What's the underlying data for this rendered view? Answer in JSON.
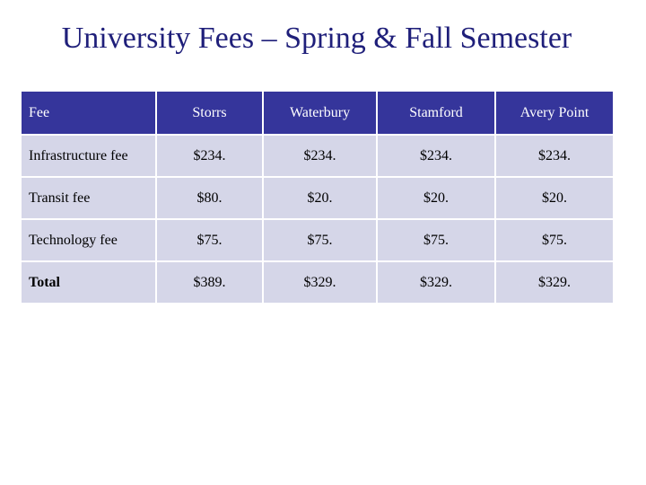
{
  "title": "University Fees – Spring & Fall Semester",
  "table": {
    "headers": [
      "Fee",
      "Storrs",
      "Waterbury",
      "Stamford",
      "Avery Point"
    ],
    "rows": [
      {
        "label": "Infrastructure fee",
        "values": [
          "$234.",
          "$234.",
          "$234.",
          "$234."
        ]
      },
      {
        "label": "Transit fee",
        "values": [
          "$80.",
          "$20.",
          "$20.",
          "$20."
        ]
      },
      {
        "label": "Technology fee",
        "values": [
          "$75.",
          "$75.",
          "$75.",
          "$75."
        ]
      },
      {
        "label": "Total",
        "values": [
          "$389.",
          "$329.",
          "$329.",
          "$329."
        ]
      }
    ]
  },
  "colors": {
    "title": "#1f1f7a",
    "header_bg": "#35359b",
    "header_text": "#ffffff",
    "cell_bg": "#d5d6e8"
  }
}
